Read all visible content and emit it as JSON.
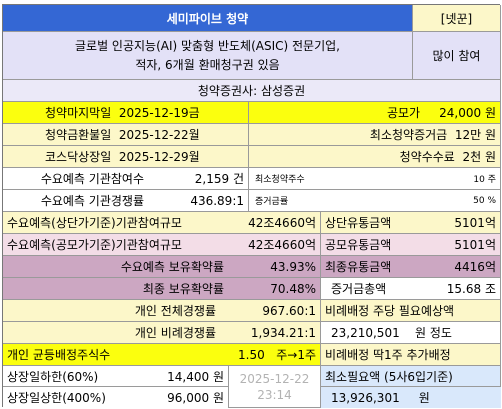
{
  "header": {
    "title": "세미파이브 청약",
    "badge": "[넷꾼]"
  },
  "info": {
    "description_line1": "글로벌 인공지능(AI) 맞춤형 반도체(ASIC) 전문기업,",
    "description_line2": "적자, 6개월 환매청구권 있음",
    "recommendation": "많이 참여"
  },
  "broker": "청약증권사:  삼성증권",
  "dates": [
    {
      "label": "청약마지막일",
      "value": "2025-12-19금"
    },
    {
      "label": "청약금환불일",
      "value": "2025-12-22월"
    },
    {
      "label": "코스닥상장일",
      "value": "2025-12-29월"
    }
  ],
  "offer": [
    {
      "label": "공모가",
      "value": "24,000 원"
    },
    {
      "label": "최소청약증거금",
      "value": "12만 원"
    },
    {
      "label": "청약수수료",
      "value": "2천 원"
    }
  ],
  "demand": {
    "inst_participants_label": "수요예측 기관참여수",
    "inst_participants_value": "2,159 건",
    "inst_ratio_label": "수요예측 기관경쟁률",
    "inst_ratio_value": "436.89:1",
    "min_subscribe_label": "최소청약주수",
    "min_subscribe_value": "10 주",
    "deposit_rate_label": "증거금률",
    "deposit_rate_value": "50 %",
    "upper_size_label": "수요예측(상단가기준)기관참여규모",
    "upper_size_value": "42조4660억",
    "lower_size_label": "수요예측(공모가기준)기관참여규모",
    "lower_size_value": "42조4660억",
    "upper_float_label": "상단유통금액",
    "upper_float_value": "5101억",
    "offer_float_label": "공모유통금액",
    "offer_float_value": "5101억",
    "lockup_label": "수요예측 보유확약률",
    "lockup_value": "43.93%",
    "final_lockup_label": "최종 보유확약률",
    "final_lockup_value": "70.48%",
    "final_float_label": "최종유통금액",
    "final_float_value": "4416억",
    "total_deposit_label": "증거금총액",
    "total_deposit_value": "15.68 조"
  },
  "retail": {
    "total_ratio_label": "개인 전체경쟁률",
    "total_ratio_value": "967.60:1",
    "prop_ratio_label": "개인 비례경쟁률",
    "prop_ratio_value": "1,934.21:1",
    "equal_label": "개인 균등배정주식수",
    "equal_value": "1.50",
    "equal_result": "주→1주",
    "prop_need_label": "비례배정 주당 필요예상액",
    "prop_need_value": "23,210,501",
    "prop_need_unit": "원 정도",
    "extra_label": "비례배정 딱1주 추가배정",
    "min_need_label": "최소필요액 (5사6입기준)",
    "min_need_value": "13,926,301",
    "min_need_unit": "원"
  },
  "listing": {
    "low_label": "상장일하한(60%)",
    "low_value": "14,400 원",
    "high_label": "상장일상한(400%)",
    "high_value": "96,000 원",
    "timestamp_date": "2025-12-22",
    "timestamp_time": "23:14"
  },
  "colors": {
    "header_blue": "#3467d4",
    "yellow": "#fbff0e",
    "light_yellow": "#fcf7c9",
    "lavender": "#e3e1f7",
    "pink": "#f3dde7",
    "mauve": "#cca7c2",
    "light_blue": "#d9e8fb"
  }
}
